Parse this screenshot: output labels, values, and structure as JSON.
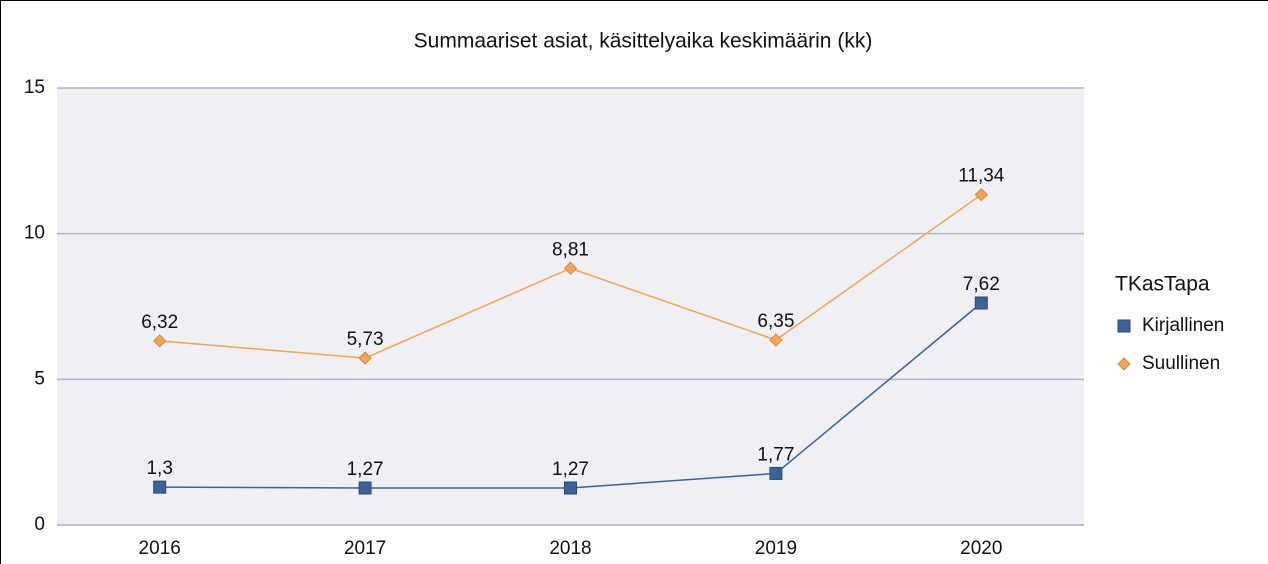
{
  "chart_data": {
    "type": "line",
    "title": "Summaariset asiat, käsittelyaika keskimäärin (kk)",
    "categories": [
      "2016",
      "2017",
      "2018",
      "2019",
      "2020"
    ],
    "series": [
      {
        "name": "Kirjallinen",
        "color": "#3b6399",
        "marker": "square",
        "values": [
          1.3,
          1.27,
          1.27,
          1.77,
          7.62
        ],
        "value_labels": [
          "1,3",
          "1,27",
          "1,27",
          "1,77",
          "7,62"
        ]
      },
      {
        "name": "Suullinen",
        "color": "#f5a555",
        "marker": "diamond",
        "values": [
          6.32,
          5.73,
          8.81,
          6.35,
          11.34
        ],
        "value_labels": [
          "6,32",
          "5,73",
          "8,81",
          "6,35",
          "11,34"
        ]
      }
    ],
    "legend_title": "TKasTapa",
    "legend": "right",
    "ylim": [
      0,
      15
    ],
    "yticks": [
      0,
      5,
      10,
      15
    ],
    "grid": true
  }
}
